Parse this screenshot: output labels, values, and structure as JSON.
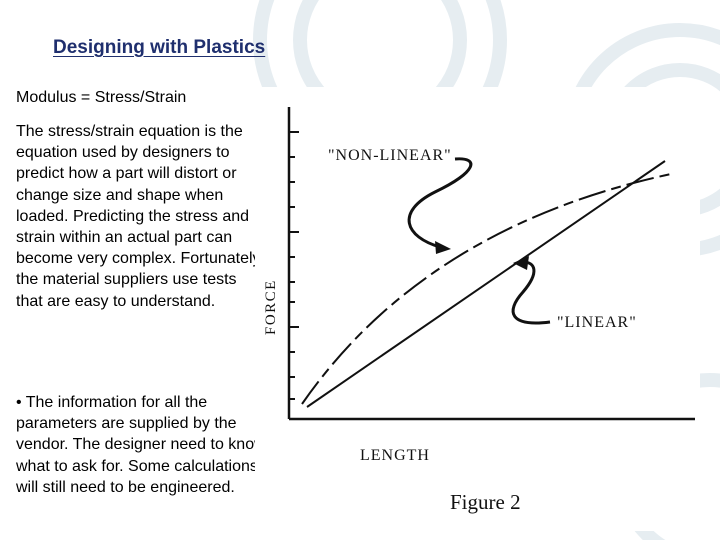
{
  "slide": {
    "title": "Designing with Plastics",
    "subtitle": "Modulus = Stress/Strain",
    "paragraph1": "The stress/strain equation is the equation used by designers to predict how a part will distort or change size and shape when loaded. Predicting the stress and strain within an actual part can become very complex. Fortunately, the material suppliers use tests that are easy to understand.",
    "paragraph2": "• The information for all the parameters are supplied by the vendor.  The designer need to know what to ask for.  Some calculations will still need to be engineered."
  },
  "figure": {
    "y_axis_label": "FORCE",
    "x_axis_label": "LENGTH",
    "nonlinear_label": "\"NON-LINEAR\"",
    "linear_label": "\"LINEAR\"",
    "caption": "Figure 2"
  },
  "colors": {
    "title": "#1f2f6e",
    "background_deco": "#e6edf1",
    "ink": "#111111"
  }
}
